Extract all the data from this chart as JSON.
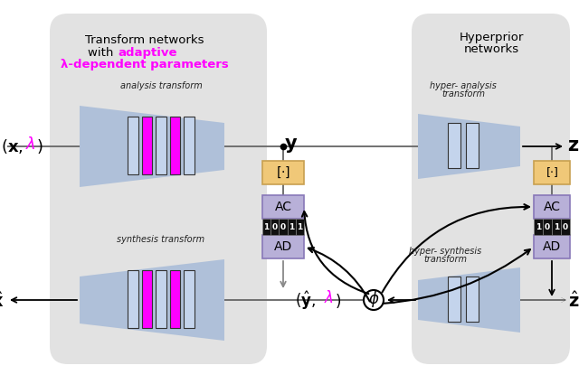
{
  "bg_color": "#ffffff",
  "left_panel_color": "#e4e4e4",
  "right_panel_color": "#e4e4e4",
  "blue_trap_color": "#aabdd8",
  "magenta_color": "#ff00ff",
  "light_bar_color": "#c4d4ec",
  "quant_box_color": "#f0c878",
  "ac_box_color": "#b8b0d8",
  "ad_box_color": "#b8b0d8",
  "bits_left": "10011",
  "bits_right": "1010",
  "title1": "Transform networks",
  "title2a": "with ",
  "title2b": "adaptive",
  "title3": "λ-dependent parameters",
  "title_right": "Hyperprior",
  "title_right2": "networks",
  "lbl_analysis": "analysis transform",
  "lbl_synthesis": "synthesis transform",
  "lbl_hyper_an": "hyper- analysis",
  "lbl_hyper_an2": "transform",
  "lbl_hyper_sy": "hyper- synthesis",
  "lbl_hyper_sy2": "transform",
  "lbl_ac": "AC",
  "lbl_ad": "AD"
}
